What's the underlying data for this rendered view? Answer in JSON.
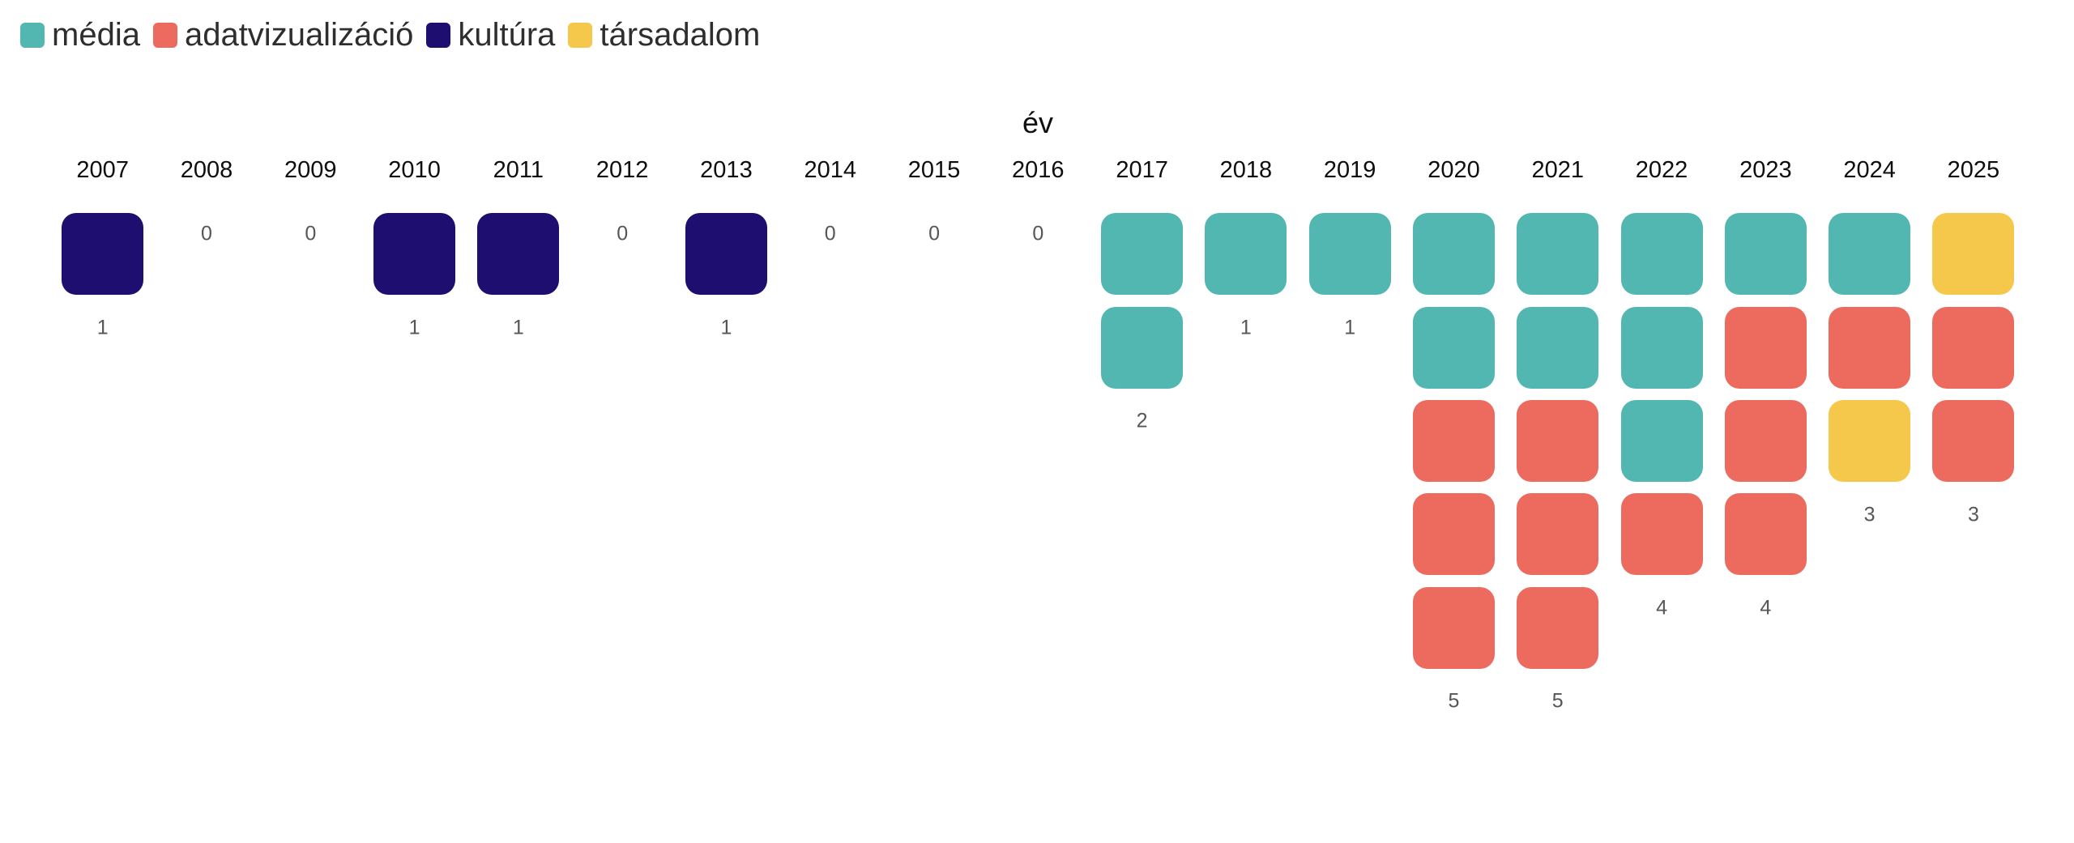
{
  "page": {
    "background_color": "#ffffff"
  },
  "chart_data": {
    "type": "waffle",
    "title": "év",
    "legend_position": "top-left",
    "grid": false,
    "square_colors": {
      "média": "#53B7B1",
      "adatvizualizáció": "#ED6A5F",
      "kultúra": "#1E0E6F",
      "társadalom": "#F5C84C"
    },
    "legend_items": [
      {
        "label": "média",
        "color": "#53B7B1"
      },
      {
        "label": "adatvizualizáció",
        "color": "#ED6A5F"
      },
      {
        "label": "kultúra",
        "color": "#1E0E6F"
      },
      {
        "label": "társadalom",
        "color": "#F5C84C"
      }
    ],
    "categories": [
      "2007",
      "2008",
      "2009",
      "2010",
      "2011",
      "2012",
      "2013",
      "2014",
      "2015",
      "2016",
      "2017",
      "2018",
      "2019",
      "2020",
      "2021",
      "2022",
      "2023",
      "2024",
      "2025"
    ],
    "columns": [
      {
        "year": "2007",
        "count": "1",
        "cells": [
          "kultúra"
        ]
      },
      {
        "year": "2008",
        "count": "0",
        "cells": []
      },
      {
        "year": "2009",
        "count": "0",
        "cells": []
      },
      {
        "year": "2010",
        "count": "1",
        "cells": [
          "kultúra"
        ]
      },
      {
        "year": "2011",
        "count": "1",
        "cells": [
          "kultúra"
        ]
      },
      {
        "year": "2012",
        "count": "0",
        "cells": []
      },
      {
        "year": "2013",
        "count": "1",
        "cells": [
          "kultúra"
        ]
      },
      {
        "year": "2014",
        "count": "0",
        "cells": []
      },
      {
        "year": "2015",
        "count": "0",
        "cells": []
      },
      {
        "year": "2016",
        "count": "0",
        "cells": []
      },
      {
        "year": "2017",
        "count": "2",
        "cells": [
          "média",
          "média"
        ]
      },
      {
        "year": "2018",
        "count": "1",
        "cells": [
          "média"
        ]
      },
      {
        "year": "2019",
        "count": "1",
        "cells": [
          "média"
        ]
      },
      {
        "year": "2020",
        "count": "5",
        "cells": [
          "média",
          "média",
          "adatvizualizáció",
          "adatvizualizáció",
          "adatvizualizáció"
        ]
      },
      {
        "year": "2021",
        "count": "5",
        "cells": [
          "média",
          "média",
          "adatvizualizáció",
          "adatvizualizáció",
          "adatvizualizáció"
        ]
      },
      {
        "year": "2022",
        "count": "4",
        "cells": [
          "média",
          "média",
          "média",
          "adatvizualizáció"
        ]
      },
      {
        "year": "2023",
        "count": "4",
        "cells": [
          "média",
          "adatvizualizáció",
          "adatvizualizáció",
          "adatvizualizáció"
        ]
      },
      {
        "year": "2024",
        "count": "3",
        "cells": [
          "média",
          "adatvizualizáció",
          "társadalom"
        ]
      },
      {
        "year": "2025",
        "count": "3",
        "cells": [
          "társadalom",
          "adatvizualizáció",
          "adatvizualizáció"
        ]
      }
    ]
  }
}
